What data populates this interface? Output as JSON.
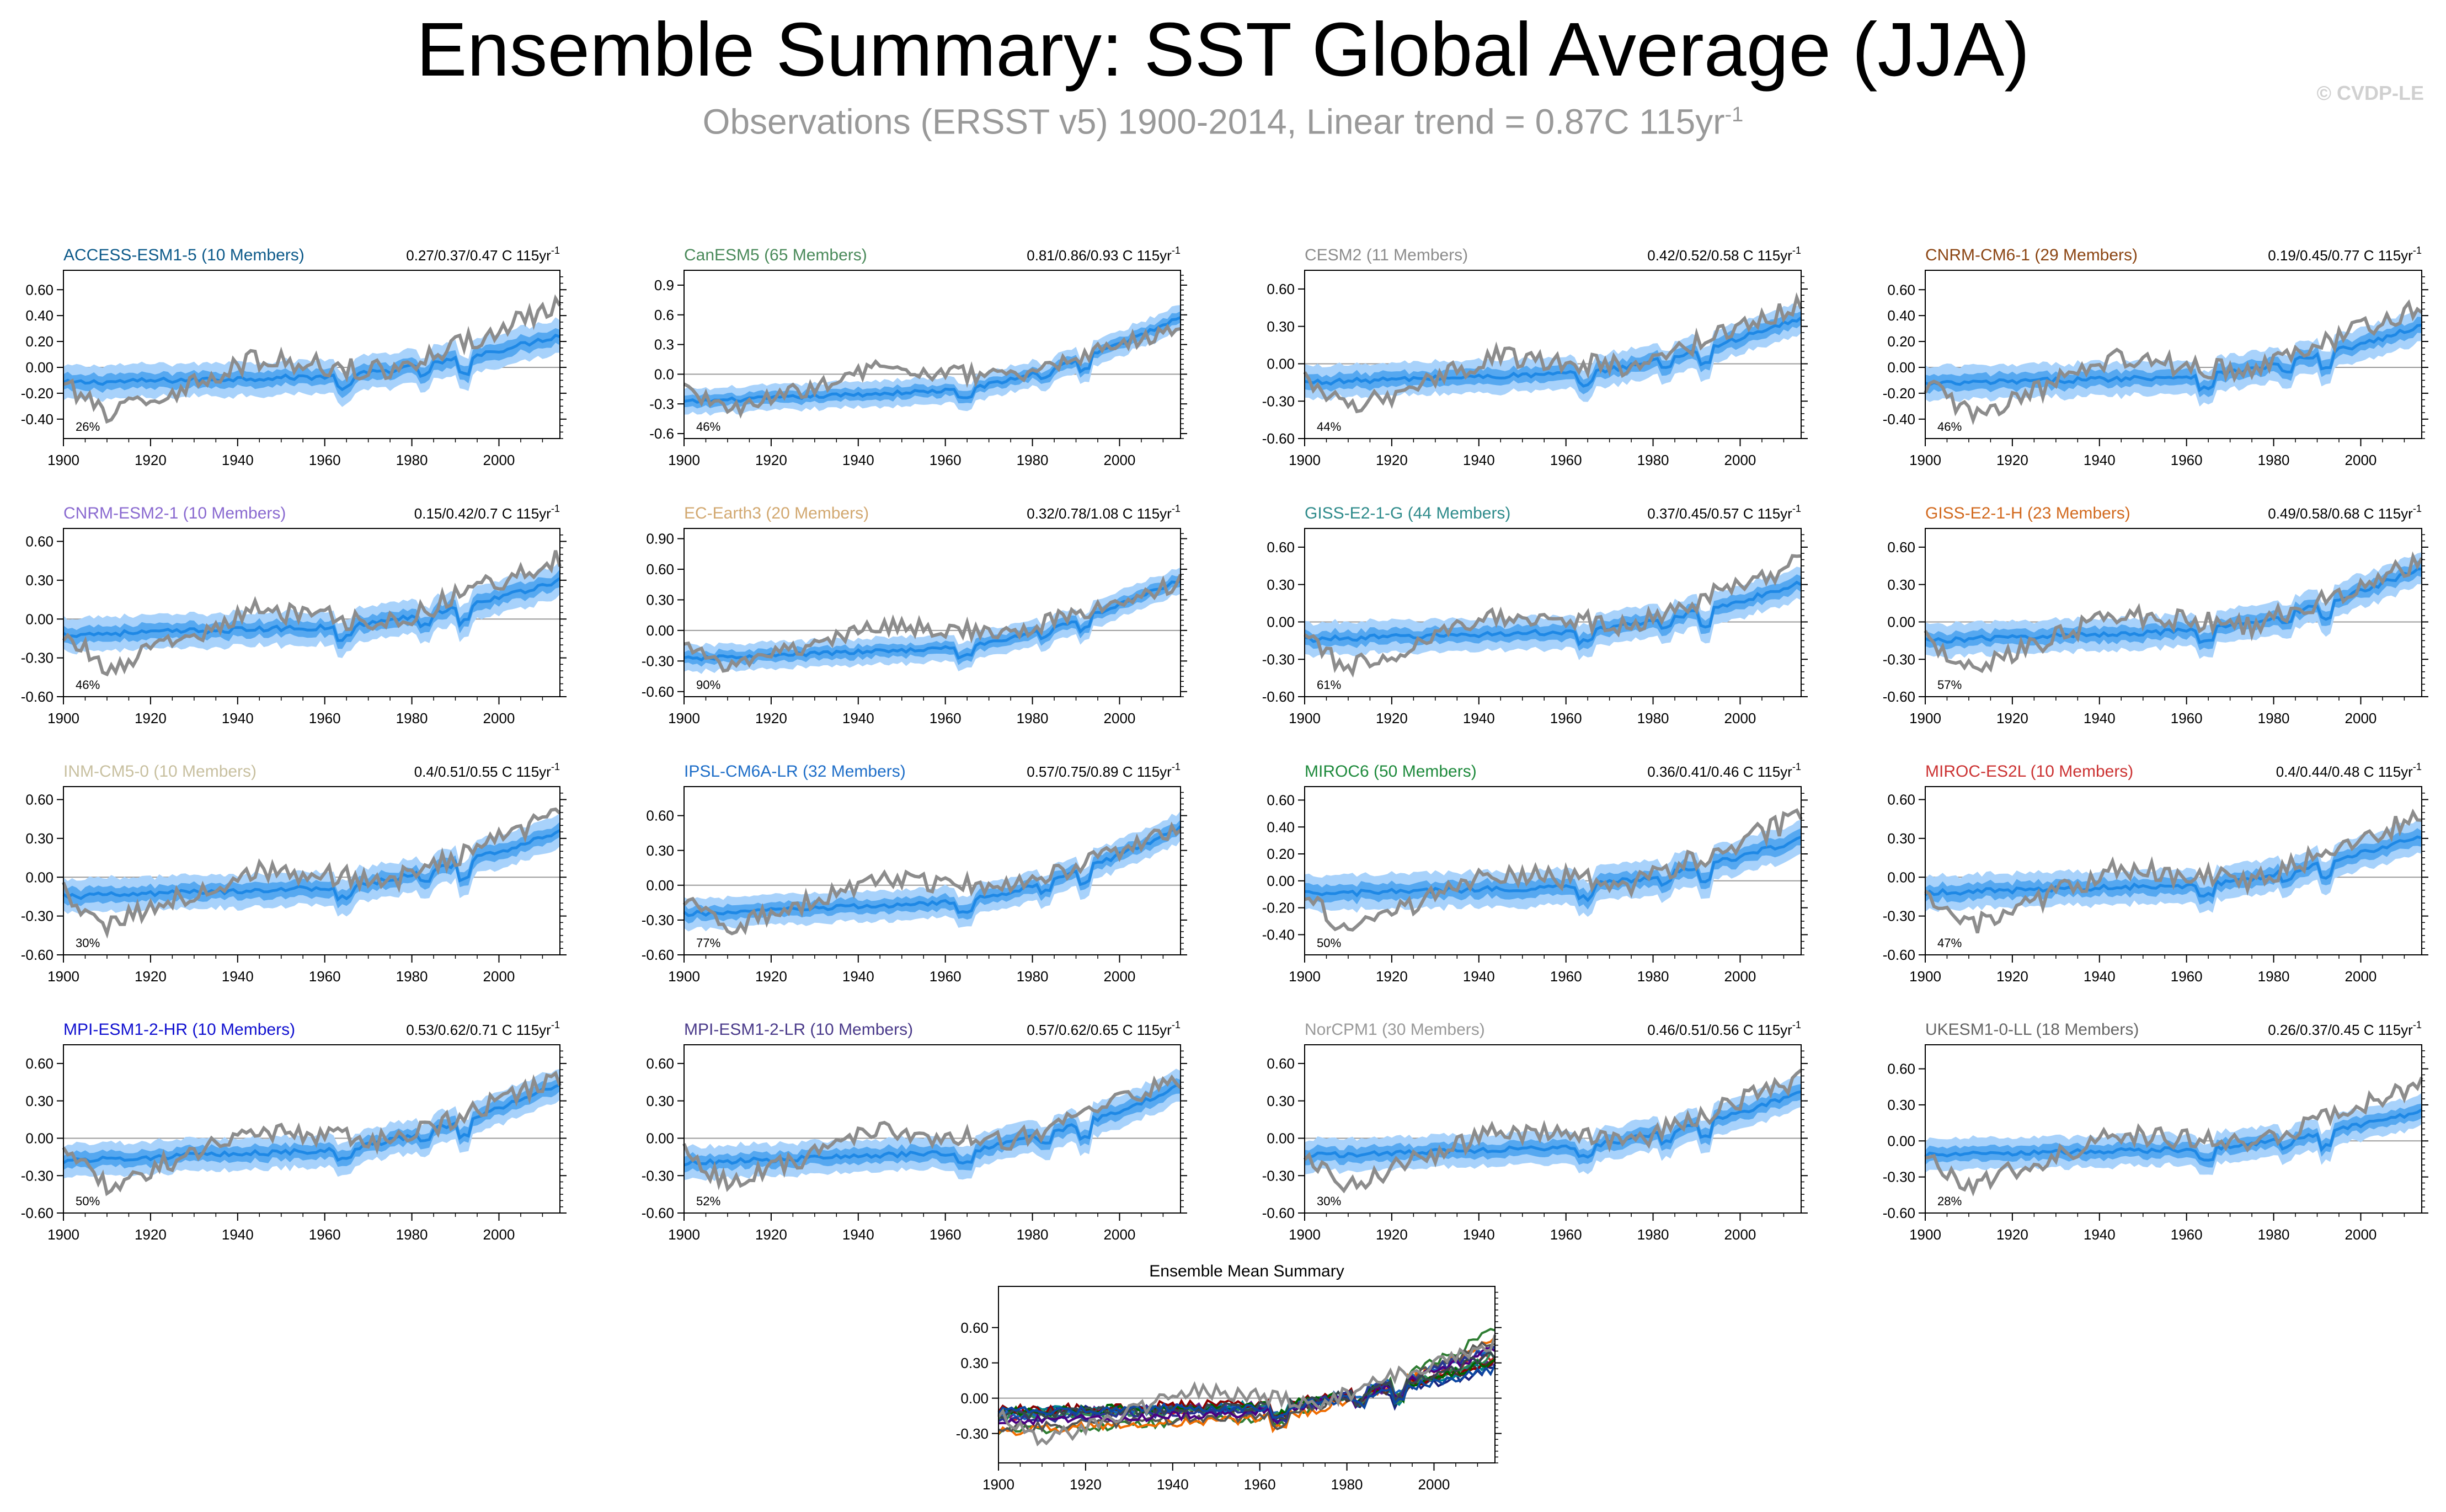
{
  "header": {
    "title": "Ensemble Summary: SST Global Average (JJA)",
    "subtitle_main": "Observations (ERSST v5) 1900-2014, Linear trend = 0.87C 115yr",
    "subtitle_sup": "-1",
    "copyright": "© CVDP-LE"
  },
  "colors": {
    "obs": "#8c8c8c",
    "ensemble_mean": "#1e88e5",
    "band_inner": "#56a8f0",
    "band_outer": "#a8d2fb"
  },
  "chart_data": [
    {
      "type": "line",
      "title": "ACCESS-ESM1-5 (10 Members)",
      "title_color": "#0d5a8a",
      "trend_text": "0.27/0.37/0.47 C 115yr",
      "trend_sup": "-1",
      "percent": "26%",
      "yticks": [
        "0.60",
        "0.40",
        "0.20",
        "0.00",
        "-0.20",
        "-0.40"
      ],
      "ytick_values": [
        0.6,
        0.4,
        0.2,
        0.0,
        -0.2,
        -0.4
      ],
      "ylim": [
        -0.55,
        0.75
      ],
      "xticks": [
        "1900",
        "1920",
        "1940",
        "1960",
        "1980",
        "2000"
      ],
      "xlim": [
        1900,
        2014
      ],
      "model_trend": 0.37,
      "model_start": -0.12,
      "obs_trend": 0.87,
      "grid": "zero-line only",
      "series": [
        {
          "name": "ACCESS-ESM1-5",
          "values": []
        }
      ]
    },
    {
      "type": "line",
      "title": "CanESM5 (65 Members)",
      "title_color": "#4a8a5a",
      "trend_text": "0.81/0.86/0.93 C 115yr",
      "trend_sup": "-1",
      "percent": "46%",
      "yticks": [
        "0.9",
        "0.6",
        "0.3",
        "0.0",
        "-0.3",
        "-0.6"
      ],
      "ytick_values": [
        0.9,
        0.6,
        0.3,
        0.0,
        -0.3,
        -0.6
      ],
      "ylim": [
        -0.65,
        1.05
      ],
      "xticks": [
        "1900",
        "1920",
        "1940",
        "1960",
        "1980",
        "2000"
      ],
      "xlim": [
        1900,
        2014
      ],
      "model_trend": 0.86,
      "model_start": -0.28,
      "obs_trend": 0.87,
      "grid": "zero-line only",
      "series": [
        {
          "name": "CanESM5",
          "values": []
        }
      ]
    },
    {
      "type": "line",
      "title": "CESM2 (11 Members)",
      "title_color": "#8c8c8c",
      "trend_text": "0.42/0.52/0.58 C 115yr",
      "trend_sup": "-1",
      "percent": "44%",
      "yticks": [
        "0.60",
        "0.30",
        "0.00",
        "-0.30",
        "-0.60"
      ],
      "ytick_values": [
        0.6,
        0.3,
        0.0,
        -0.3,
        -0.6
      ],
      "ylim": [
        -0.6,
        0.75
      ],
      "xticks": [
        "1900",
        "1920",
        "1940",
        "1960",
        "1980",
        "2000"
      ],
      "xlim": [
        1900,
        2014
      ],
      "model_trend": 0.52,
      "model_start": -0.15,
      "obs_trend": 0.87,
      "grid": "zero-line only",
      "series": [
        {
          "name": "CESM2",
          "values": []
        }
      ]
    },
    {
      "type": "line",
      "title": "CNRM-CM6-1 (29 Members)",
      "title_color": "#8b4513",
      "trend_text": "0.19/0.45/0.77 C 115yr",
      "trend_sup": "-1",
      "percent": "46%",
      "yticks": [
        "0.60",
        "0.40",
        "0.20",
        "0.00",
        "-0.20",
        "-0.40"
      ],
      "ytick_values": [
        0.6,
        0.4,
        0.2,
        0.0,
        -0.2,
        -0.4
      ],
      "ylim": [
        -0.55,
        0.75
      ],
      "xticks": [
        "1900",
        "1920",
        "1940",
        "1960",
        "1980",
        "2000"
      ],
      "xlim": [
        1900,
        2014
      ],
      "model_trend": 0.45,
      "model_start": -0.13,
      "obs_trend": 0.87,
      "grid": "zero-line only",
      "series": [
        {
          "name": "CNRM-CM6-1",
          "values": []
        }
      ]
    },
    {
      "type": "line",
      "title": "CNRM-ESM2-1 (10 Members)",
      "title_color": "#8a6ad0",
      "trend_text": "0.15/0.42/0.7 C 115yr",
      "trend_sup": "-1",
      "percent": "46%",
      "yticks": [
        "0.60",
        "0.30",
        "0.00",
        "-0.30",
        "-0.60"
      ],
      "ytick_values": [
        0.6,
        0.3,
        0.0,
        -0.3,
        -0.6
      ],
      "ylim": [
        -0.6,
        0.7
      ],
      "xticks": [
        "1900",
        "1920",
        "1940",
        "1960",
        "1980",
        "2000"
      ],
      "xlim": [
        1900,
        2014
      ],
      "model_trend": 0.42,
      "model_start": -0.12,
      "obs_trend": 0.87,
      "grid": "zero-line only",
      "series": [
        {
          "name": "CNRM-ESM2-1",
          "values": []
        }
      ]
    },
    {
      "type": "line",
      "title": "EC-Earth3 (20 Members)",
      "title_color": "#d2a870",
      "trend_text": "0.32/0.78/1.08 C 115yr",
      "trend_sup": "-1",
      "percent": "90%",
      "yticks": [
        "0.90",
        "0.60",
        "0.30",
        "0.00",
        "-0.30",
        "-0.60"
      ],
      "ytick_values": [
        0.9,
        0.6,
        0.3,
        0.0,
        -0.3,
        -0.6
      ],
      "ylim": [
        -0.65,
        1.0
      ],
      "xticks": [
        "1900",
        "1920",
        "1940",
        "1960",
        "1980",
        "2000"
      ],
      "xlim": [
        1900,
        2014
      ],
      "model_trend": 0.78,
      "model_start": -0.28,
      "obs_trend": 0.87,
      "grid": "zero-line only",
      "series": [
        {
          "name": "EC-Earth3",
          "values": []
        }
      ]
    },
    {
      "type": "line",
      "title": "GISS-E2-1-G (44 Members)",
      "title_color": "#2e8b8b",
      "trend_text": "0.37/0.45/0.57 C 115yr",
      "trend_sup": "-1",
      "percent": "61%",
      "yticks": [
        "0.60",
        "0.30",
        "0.00",
        "-0.30",
        "-0.60"
      ],
      "ytick_values": [
        0.6,
        0.3,
        0.0,
        -0.3,
        -0.6
      ],
      "ylim": [
        -0.6,
        0.75
      ],
      "xticks": [
        "1900",
        "1920",
        "1940",
        "1960",
        "1980",
        "2000"
      ],
      "xlim": [
        1900,
        2014
      ],
      "model_trend": 0.45,
      "model_start": -0.14,
      "obs_trend": 0.87,
      "grid": "zero-line only",
      "series": [
        {
          "name": "GISS-E2-1-G",
          "values": []
        }
      ]
    },
    {
      "type": "line",
      "title": "GISS-E2-1-H (23 Members)",
      "title_color": "#d2691e",
      "trend_text": "0.49/0.58/0.68 C 115yr",
      "trend_sup": "-1",
      "percent": "57%",
      "yticks": [
        "0.60",
        "0.30",
        "0.00",
        "-0.30",
        "-0.60"
      ],
      "ytick_values": [
        0.6,
        0.3,
        0.0,
        -0.3,
        -0.6
      ],
      "ylim": [
        -0.6,
        0.75
      ],
      "xticks": [
        "1900",
        "1920",
        "1940",
        "1960",
        "1980",
        "2000"
      ],
      "xlim": [
        1900,
        2014
      ],
      "model_trend": 0.58,
      "model_start": -0.15,
      "obs_trend": 0.87,
      "grid": "zero-line only",
      "series": [
        {
          "name": "GISS-E2-1-H",
          "values": []
        }
      ]
    },
    {
      "type": "line",
      "title": "INM-CM5-0 (10 Members)",
      "title_color": "#c8c0a0",
      "trend_text": "0.4/0.51/0.55 C 115yr",
      "trend_sup": "-1",
      "percent": "30%",
      "yticks": [
        "0.60",
        "0.30",
        "0.00",
        "-0.30",
        "-0.60"
      ],
      "ytick_values": [
        0.6,
        0.3,
        0.0,
        -0.3,
        -0.6
      ],
      "ylim": [
        -0.6,
        0.7
      ],
      "xticks": [
        "1900",
        "1920",
        "1940",
        "1960",
        "1980",
        "2000"
      ],
      "xlim": [
        1900,
        2014
      ],
      "model_trend": 0.51,
      "model_start": -0.15,
      "obs_trend": 0.87,
      "grid": "zero-line only",
      "series": [
        {
          "name": "INM-CM5-0",
          "values": []
        }
      ]
    },
    {
      "type": "line",
      "title": "IPSL-CM6A-LR (32 Members)",
      "title_color": "#1e6ec8",
      "trend_text": "0.57/0.75/0.89 C 115yr",
      "trend_sup": "-1",
      "percent": "77%",
      "yticks": [
        "0.60",
        "0.30",
        "0.00",
        "-0.30",
        "-0.60"
      ],
      "ytick_values": [
        0.6,
        0.3,
        0.0,
        -0.3,
        -0.6
      ],
      "ylim": [
        -0.6,
        0.85
      ],
      "xticks": [
        "1900",
        "1920",
        "1940",
        "1960",
        "1980",
        "2000"
      ],
      "xlim": [
        1900,
        2014
      ],
      "model_trend": 0.75,
      "model_start": -0.25,
      "obs_trend": 0.87,
      "grid": "zero-line only",
      "series": [
        {
          "name": "IPSL-CM6A-LR",
          "values": []
        }
      ]
    },
    {
      "type": "line",
      "title": "MIROC6 (50 Members)",
      "title_color": "#1e8a3c",
      "trend_text": "0.36/0.41/0.46 C 115yr",
      "trend_sup": "-1",
      "percent": "50%",
      "yticks": [
        "0.60",
        "0.40",
        "0.20",
        "0.00",
        "-0.20",
        "-0.40"
      ],
      "ytick_values": [
        0.6,
        0.4,
        0.2,
        0.0,
        -0.2,
        -0.4
      ],
      "ylim": [
        -0.55,
        0.7
      ],
      "xticks": [
        "1900",
        "1920",
        "1940",
        "1960",
        "1980",
        "2000"
      ],
      "xlim": [
        1900,
        2014
      ],
      "model_trend": 0.41,
      "model_start": -0.1,
      "obs_trend": 0.87,
      "grid": "zero-line only",
      "series": [
        {
          "name": "MIROC6",
          "values": []
        }
      ]
    },
    {
      "type": "line",
      "title": "MIROC-ES2L (10 Members)",
      "title_color": "#cc3333",
      "trend_text": "0.4/0.44/0.48 C 115yr",
      "trend_sup": "-1",
      "percent": "47%",
      "yticks": [
        "0.60",
        "0.30",
        "0.00",
        "-0.30",
        "-0.60"
      ],
      "ytick_values": [
        0.6,
        0.3,
        0.0,
        -0.3,
        -0.6
      ],
      "ylim": [
        -0.6,
        0.7
      ],
      "xticks": [
        "1900",
        "1920",
        "1940",
        "1960",
        "1980",
        "2000"
      ],
      "xlim": [
        1900,
        2014
      ],
      "model_trend": 0.44,
      "model_start": -0.12,
      "obs_trend": 0.87,
      "grid": "zero-line only",
      "series": [
        {
          "name": "MIROC-ES2L",
          "values": []
        }
      ]
    },
    {
      "type": "line",
      "title": "MPI-ESM1-2-HR (10 Members)",
      "title_color": "#1010d0",
      "trend_text": "0.53/0.62/0.71 C 115yr",
      "trend_sup": "-1",
      "percent": "50%",
      "yticks": [
        "0.60",
        "0.30",
        "0.00",
        "-0.30",
        "-0.60"
      ],
      "ytick_values": [
        0.6,
        0.3,
        0.0,
        -0.3,
        -0.6
      ],
      "ylim": [
        -0.6,
        0.75
      ],
      "xticks": [
        "1900",
        "1920",
        "1940",
        "1960",
        "1980",
        "2000"
      ],
      "xlim": [
        1900,
        2014
      ],
      "model_trend": 0.62,
      "model_start": -0.18,
      "obs_trend": 0.87,
      "grid": "zero-line only",
      "series": [
        {
          "name": "MPI-ESM1-2-HR",
          "values": []
        }
      ]
    },
    {
      "type": "line",
      "title": "MPI-ESM1-2-LR (10 Members)",
      "title_color": "#4a3a8a",
      "trend_text": "0.57/0.62/0.65 C 115yr",
      "trend_sup": "-1",
      "percent": "52%",
      "yticks": [
        "0.60",
        "0.30",
        "0.00",
        "-0.30",
        "-0.60"
      ],
      "ytick_values": [
        0.6,
        0.3,
        0.0,
        -0.3,
        -0.6
      ],
      "ylim": [
        -0.6,
        0.75
      ],
      "xticks": [
        "1900",
        "1920",
        "1940",
        "1960",
        "1980",
        "2000"
      ],
      "xlim": [
        1900,
        2014
      ],
      "model_trend": 0.62,
      "model_start": -0.2,
      "obs_trend": 0.87,
      "grid": "zero-line only",
      "series": [
        {
          "name": "MPI-ESM1-2-LR",
          "values": []
        }
      ]
    },
    {
      "type": "line",
      "title": "NorCPM1 (30 Members)",
      "title_color": "#999999",
      "trend_text": "0.46/0.51/0.56 C 115yr",
      "trend_sup": "-1",
      "percent": "30%",
      "yticks": [
        "0.60",
        "0.30",
        "0.00",
        "-0.30",
        "-0.60"
      ],
      "ytick_values": [
        0.6,
        0.3,
        0.0,
        -0.3,
        -0.6
      ],
      "ylim": [
        -0.6,
        0.75
      ],
      "xticks": [
        "1900",
        "1920",
        "1940",
        "1960",
        "1980",
        "2000"
      ],
      "xlim": [
        1900,
        2014
      ],
      "model_trend": 0.51,
      "model_start": -0.14,
      "obs_trend": 0.87,
      "grid": "zero-line only",
      "series": [
        {
          "name": "NorCPM1",
          "values": []
        }
      ]
    },
    {
      "type": "line",
      "title": "UKESM1-0-LL (18 Members)",
      "title_color": "#666666",
      "trend_text": "0.26/0.37/0.45 C 115yr",
      "trend_sup": "-1",
      "percent": "28%",
      "yticks": [
        "0.60",
        "0.30",
        "0.00",
        "-0.30",
        "-0.60"
      ],
      "ytick_values": [
        0.6,
        0.3,
        0.0,
        -0.3,
        -0.6
      ],
      "ylim": [
        -0.6,
        0.8
      ],
      "xticks": [
        "1900",
        "1920",
        "1940",
        "1960",
        "1980",
        "2000"
      ],
      "xlim": [
        1900,
        2014
      ],
      "model_trend": 0.37,
      "model_start": -0.12,
      "obs_trend": 0.87,
      "grid": "zero-line only",
      "series": [
        {
          "name": "UKESM1-0-LL",
          "values": []
        }
      ]
    },
    {
      "type": "line",
      "title": "Ensemble Mean Summary",
      "title_color": "#000000",
      "trend_text": "",
      "trend_sup": "",
      "percent": "",
      "yticks": [
        "0.60",
        "0.30",
        "0.00",
        "-0.30"
      ],
      "ytick_values": [
        0.6,
        0.3,
        0.0,
        -0.3
      ],
      "ylim": [
        -0.55,
        0.95
      ],
      "xticks": [
        "1900",
        "1920",
        "1940",
        "1960",
        "1980",
        "2000"
      ],
      "xlim": [
        1900,
        2014
      ],
      "grid": "zero-line only",
      "series": []
    }
  ]
}
